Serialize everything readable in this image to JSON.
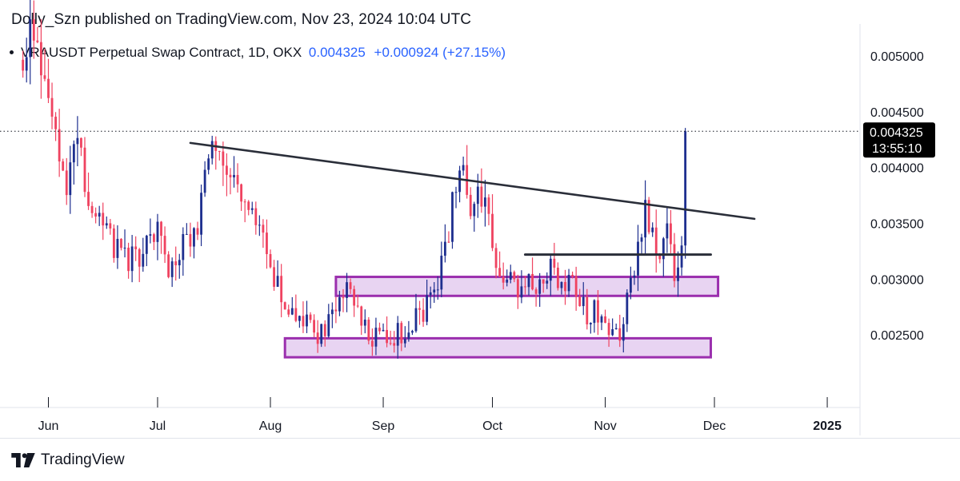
{
  "header": {
    "published": "Dolly_Szn published on TradingView.com, Nov 23, 2024 10:04 UTC",
    "symbol": "VRAUSDT Perpetual Swap Contract, 1D, OKX",
    "price": "0.004325",
    "change": "+0.000924 (+27.15%)"
  },
  "footer": {
    "brand": "TradingView"
  },
  "colors": {
    "up": "#1e2f8f",
    "down": "#ef4360",
    "trendline": "#2a2e39",
    "zone_fill": "#e8d4f2",
    "zone_stroke": "#9b2fae",
    "price_tag": "#000000"
  },
  "chart_data": {
    "type": "candlestick",
    "y_ticks": [
      "0.005000",
      "0.004500",
      "0.004000",
      "0.003500",
      "0.003000",
      "0.002500"
    ],
    "y_tick_values": [
      0.005,
      0.0045,
      0.004,
      0.0035,
      0.003,
      0.0025
    ],
    "ylim": [
      0.00185,
      0.00525
    ],
    "x_labels": [
      {
        "label": "Jun",
        "date": "2024-06-01"
      },
      {
        "label": "Jul",
        "date": "2024-07-01"
      },
      {
        "label": "Aug",
        "date": "2024-08-01"
      },
      {
        "label": "Sep",
        "date": "2024-09-01"
      },
      {
        "label": "Oct",
        "date": "2024-10-01"
      },
      {
        "label": "Nov",
        "date": "2024-11-01"
      },
      {
        "label": "Dec",
        "date": "2024-12-01"
      },
      {
        "label": "2025",
        "date": "2025-01-01",
        "bold": true
      }
    ],
    "xlim": [
      "2024-05-22",
      "2025-01-10"
    ],
    "last_price": {
      "value": 0.004325,
      "label": "0.004325",
      "countdown": "13:55:10"
    },
    "candle_path": [
      [
        "2024-05-25",
        0.00505
      ],
      [
        "2024-05-29",
        0.00515
      ],
      [
        "2024-06-03",
        0.00425
      ],
      [
        "2024-06-06",
        0.0039
      ],
      [
        "2024-06-09",
        0.0042
      ],
      [
        "2024-06-12",
        0.0037
      ],
      [
        "2024-06-16",
        0.0036
      ],
      [
        "2024-06-19",
        0.0033
      ],
      [
        "2024-06-23",
        0.00315
      ],
      [
        "2024-06-27",
        0.0032
      ],
      [
        "2024-07-01",
        0.0035
      ],
      [
        "2024-07-04",
        0.0031
      ],
      [
        "2024-07-08",
        0.0033
      ],
      [
        "2024-07-12",
        0.0035
      ],
      [
        "2024-07-15",
        0.0041
      ],
      [
        "2024-07-18",
        0.00415
      ],
      [
        "2024-07-21",
        0.0039
      ],
      [
        "2024-07-25",
        0.0036
      ],
      [
        "2024-07-29",
        0.0034
      ],
      [
        "2024-08-01",
        0.0031
      ],
      [
        "2024-08-04",
        0.0028
      ],
      [
        "2024-08-07",
        0.00265
      ],
      [
        "2024-08-11",
        0.0026
      ],
      [
        "2024-08-15",
        0.0025
      ],
      [
        "2024-08-18",
        0.0027
      ],
      [
        "2024-08-21",
        0.0029
      ],
      [
        "2024-08-24",
        0.0028
      ],
      [
        "2024-08-28",
        0.0025
      ],
      [
        "2024-09-01",
        0.0025
      ],
      [
        "2024-09-05",
        0.0025
      ],
      [
        "2024-09-08",
        0.00255
      ],
      [
        "2024-09-12",
        0.0027
      ],
      [
        "2024-09-16",
        0.003
      ],
      [
        "2024-09-19",
        0.0034
      ],
      [
        "2024-09-22",
        0.0041
      ],
      [
        "2024-09-25",
        0.0037
      ],
      [
        "2024-09-27",
        0.0039
      ],
      [
        "2024-09-29",
        0.0036
      ],
      [
        "2024-10-02",
        0.0031
      ],
      [
        "2024-10-05",
        0.003
      ],
      [
        "2024-10-09",
        0.0029
      ],
      [
        "2024-10-13",
        0.003
      ],
      [
        "2024-10-16",
        0.0031
      ],
      [
        "2024-10-20",
        0.003
      ],
      [
        "2024-10-24",
        0.0029
      ],
      [
        "2024-10-27",
        0.0027
      ],
      [
        "2024-10-30",
        0.0027
      ],
      [
        "2024-11-02",
        0.0025
      ],
      [
        "2024-11-05",
        0.0025
      ],
      [
        "2024-11-09",
        0.0031
      ],
      [
        "2024-11-12",
        0.0037
      ],
      [
        "2024-11-14",
        0.0034
      ],
      [
        "2024-11-16",
        0.0031
      ],
      [
        "2024-11-18",
        0.0034
      ],
      [
        "2024-11-20",
        0.0031
      ],
      [
        "2024-11-22",
        0.0034
      ],
      [
        "2024-11-23",
        0.004325
      ]
    ],
    "annotations": [
      {
        "type": "trendline",
        "from": [
          "2024-07-10",
          0.00422
        ],
        "to": [
          "2024-12-12",
          0.00354
        ]
      },
      {
        "type": "hline",
        "from": [
          "2024-10-10",
          0.00322
        ],
        "to": [
          "2024-11-30",
          0.00322
        ]
      },
      {
        "type": "zone",
        "from": [
          "2024-08-19",
          0.00302
        ],
        "to": [
          "2024-12-02",
          0.00285
        ]
      },
      {
        "type": "zone",
        "from": [
          "2024-08-05",
          0.00247
        ],
        "to": [
          "2024-11-30",
          0.0023
        ]
      }
    ]
  }
}
